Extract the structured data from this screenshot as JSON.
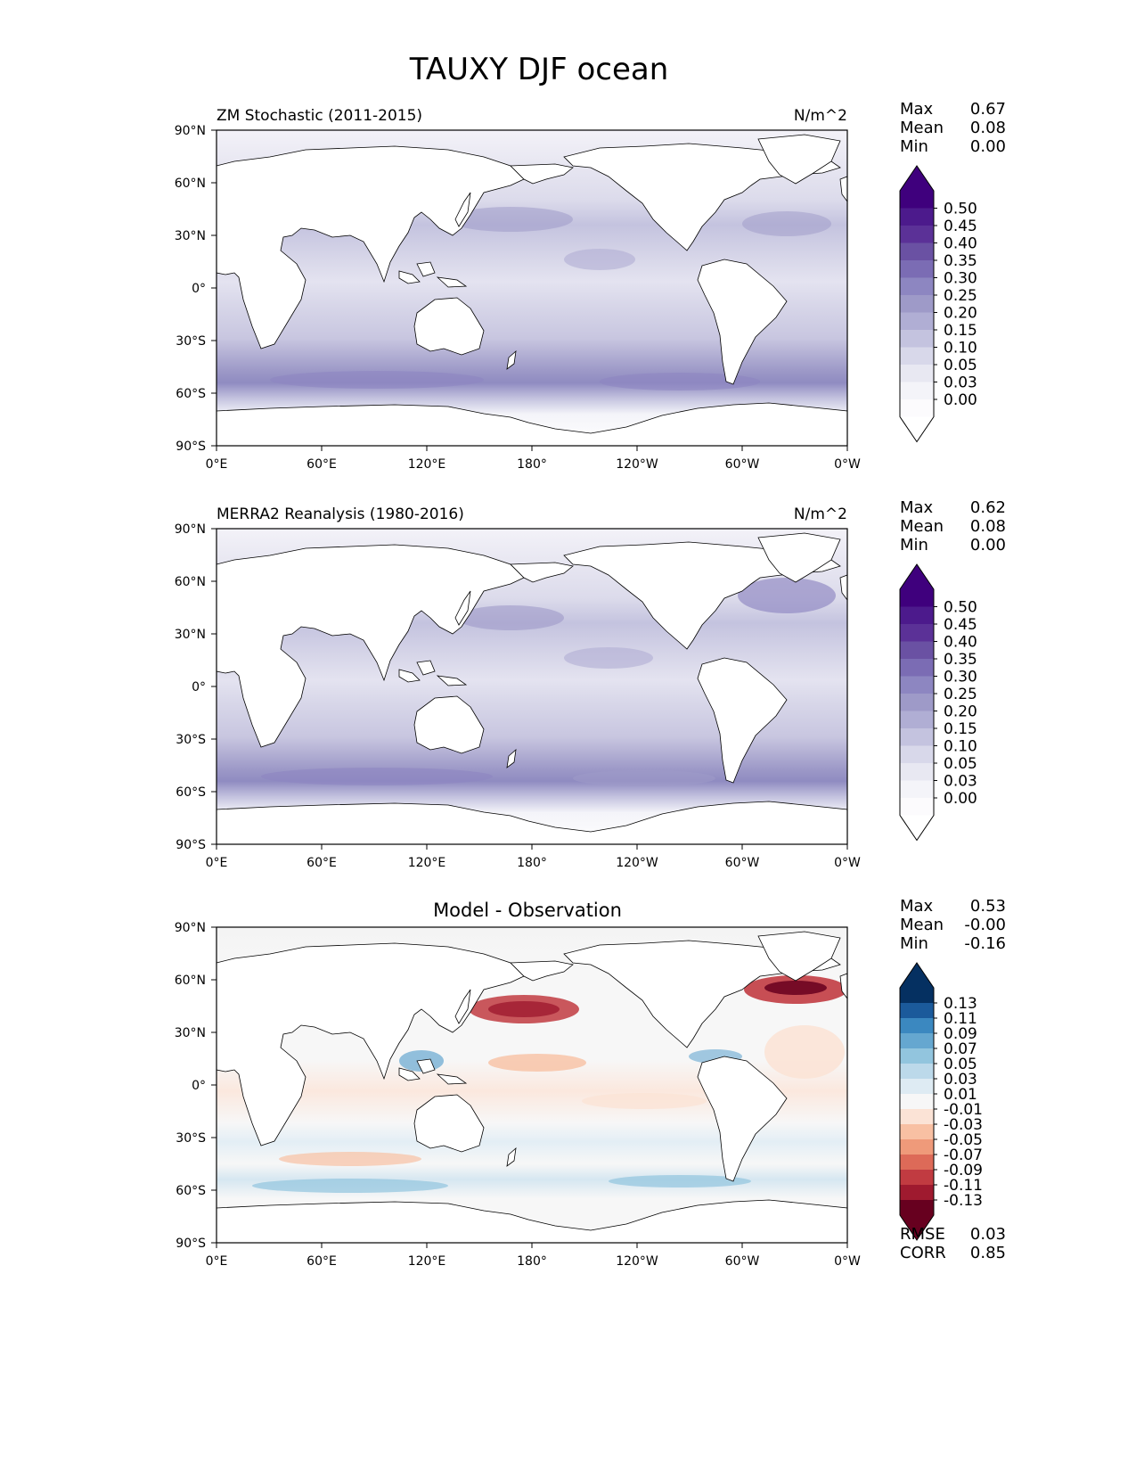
{
  "title": "TAUXY DJF ocean",
  "x_ticks": [
    "0°E",
    "60°E",
    "120°E",
    "180°",
    "120°W",
    "60°W",
    "0°W"
  ],
  "y_ticks": [
    "90°N",
    "60°N",
    "30°N",
    "0°",
    "30°S",
    "60°S",
    "90°S"
  ],
  "panels": [
    {
      "id": "model",
      "left_title": "ZM Stochastic (2011-2015)",
      "center_title": "",
      "units": "N/m^2",
      "stats": [
        {
          "label": "Max",
          "value": "0.67"
        },
        {
          "label": "Mean",
          "value": "0.08"
        },
        {
          "label": "Min",
          "value": "0.00"
        }
      ],
      "colorbar": {
        "extend": "both",
        "low_color": "#ffffff",
        "high_color": "#3f007d",
        "labels": [
          "0.50",
          "0.45",
          "0.40",
          "0.35",
          "0.30",
          "0.25",
          "0.20",
          "0.15",
          "0.10",
          "0.05",
          "0.03",
          "0.00"
        ],
        "colors": [
          "#3f007d",
          "#4c1a8c",
          "#5b3197",
          "#6a51a3",
          "#7b6cb4",
          "#8d86c1",
          "#9e9ac8",
          "#b0aed4",
          "#c4c3df",
          "#d8d8ea",
          "#e8e8f2",
          "#f4f4f9",
          "#fcfbfd"
        ]
      },
      "side_stats": []
    },
    {
      "id": "obs",
      "left_title": "MERRA2 Reanalysis (1980-2016)",
      "center_title": "",
      "units": "N/m^2",
      "stats": [
        {
          "label": "Max",
          "value": "0.62"
        },
        {
          "label": "Mean",
          "value": "0.08"
        },
        {
          "label": "Min",
          "value": "0.00"
        }
      ],
      "colorbar": {
        "extend": "both",
        "low_color": "#ffffff",
        "high_color": "#3f007d",
        "labels": [
          "0.50",
          "0.45",
          "0.40",
          "0.35",
          "0.30",
          "0.25",
          "0.20",
          "0.15",
          "0.10",
          "0.05",
          "0.03",
          "0.00"
        ],
        "colors": [
          "#3f007d",
          "#4c1a8c",
          "#5b3197",
          "#6a51a3",
          "#7b6cb4",
          "#8d86c1",
          "#9e9ac8",
          "#b0aed4",
          "#c4c3df",
          "#d8d8ea",
          "#e8e8f2",
          "#f4f4f9",
          "#fcfbfd"
        ]
      },
      "side_stats": []
    },
    {
      "id": "diff",
      "left_title": "",
      "center_title": "Model - Observation",
      "units": "",
      "stats": [
        {
          "label": "Max",
          "value": "0.53"
        },
        {
          "label": "Mean",
          "value": "-0.00"
        },
        {
          "label": "Min",
          "value": "-0.16"
        }
      ],
      "colorbar": {
        "extend": "both",
        "low_color": "#67001f",
        "high_color": "#053061",
        "labels": [
          "0.13",
          "0.11",
          "0.09",
          "0.07",
          "0.05",
          "0.03",
          "0.01",
          "-0.01",
          "-0.03",
          "-0.05",
          "-0.07",
          "-0.09",
          "-0.11",
          "-0.13"
        ],
        "colors": [
          "#053061",
          "#1b5a9b",
          "#3b88c0",
          "#65a7d0",
          "#92c5de",
          "#bcd9ea",
          "#deebf3",
          "#f7f7f7",
          "#fbe3d6",
          "#f8c0a3",
          "#ef9a7a",
          "#dd6a58",
          "#c13b41",
          "#9f1a2f",
          "#67001f"
        ]
      },
      "side_stats": [
        {
          "label": "RMSE",
          "value": "0.03"
        },
        {
          "label": "CORR",
          "value": "0.85"
        }
      ]
    }
  ]
}
